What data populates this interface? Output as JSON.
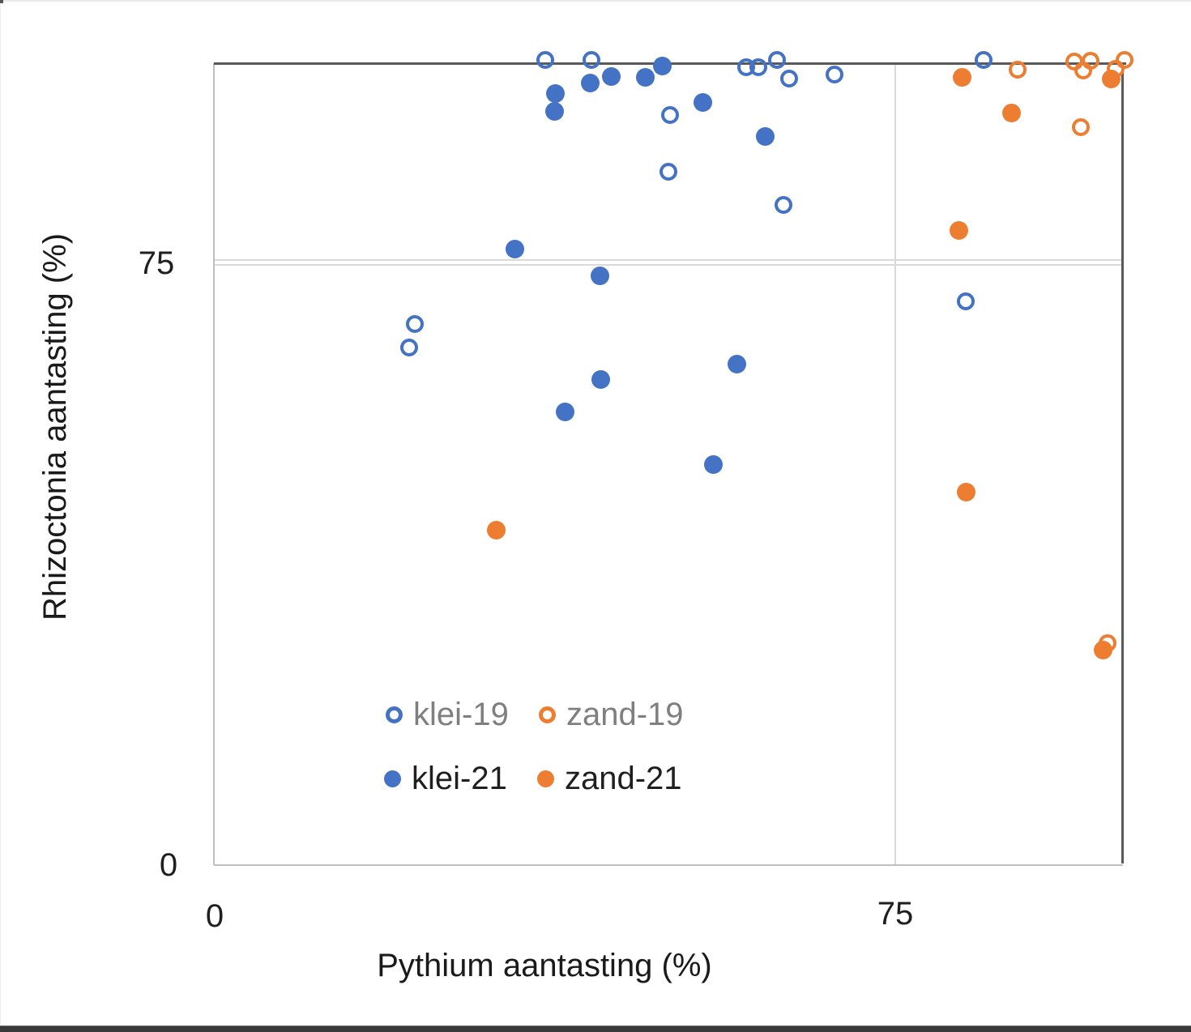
{
  "colors": {
    "blue": "#4472C4",
    "orange": "#ED7D31",
    "border_dark": "#595959",
    "axis_light": "#BFBFBF",
    "grid_light": "#D9D9D9",
    "legend_muted_text": "#7F7F7F",
    "text_dark": "#1F1F1F",
    "bottom_bar": "#3A3A3A"
  },
  "chart_data": {
    "type": "scatter",
    "title": "",
    "xlabel": "Pythium aantasting (%)",
    "ylabel": "Rhizoctonia aantasting (%)",
    "xlim": [
      0,
      100
    ],
    "ylim": [
      0,
      100
    ],
    "xticks": [
      0,
      75
    ],
    "yticks": [
      0,
      75
    ],
    "xtick_labels": [
      "0",
      "75"
    ],
    "ytick_labels": [
      "0",
      "75"
    ],
    "grid": "major gridlines at 75 on both axes; dark border on top and right edges",
    "legend": {
      "position": "inside bottom-left of plot, two rows",
      "items": [
        {
          "label": "klei-19",
          "color": "#4472C4",
          "marker": "open"
        },
        {
          "label": "zand-19",
          "color": "#ED7D31",
          "marker": "open"
        },
        {
          "label": "klei-21",
          "color": "#4472C4",
          "marker": "filled"
        },
        {
          "label": "zand-21",
          "color": "#ED7D31",
          "marker": "filled"
        }
      ]
    },
    "series": [
      {
        "name": "klei-19",
        "color": "#4472C4",
        "marker": "open",
        "points": [
          [
            36.5,
            99.9
          ],
          [
            41.6,
            100
          ],
          [
            58.6,
            99.0
          ],
          [
            59.9,
            99.0
          ],
          [
            62.0,
            99.9
          ],
          [
            63.3,
            97.6
          ],
          [
            68.3,
            98.1
          ],
          [
            84.7,
            99.9
          ],
          [
            50.2,
            93.1
          ],
          [
            50.0,
            86.1
          ],
          [
            62.7,
            82.0
          ],
          [
            82.8,
            70.0
          ],
          [
            22.1,
            67.2
          ],
          [
            21.5,
            64.3
          ]
        ]
      },
      {
        "name": "zand-19",
        "color": "#ED7D31",
        "marker": "open",
        "points": [
          [
            88.5,
            98.7
          ],
          [
            94.7,
            99.7
          ],
          [
            95.7,
            98.6
          ],
          [
            96.5,
            99.8
          ],
          [
            99.3,
            98.8
          ],
          [
            100.2,
            99.9
          ],
          [
            95.4,
            91.6
          ],
          [
            98.4,
            27.6
          ]
        ]
      },
      {
        "name": "klei-21",
        "color": "#4472C4",
        "marker": "filled",
        "points": [
          [
            41.4,
            97.1
          ],
          [
            43.7,
            97.9
          ],
          [
            47.5,
            97.8
          ],
          [
            49.4,
            99.2
          ],
          [
            37.6,
            95.8
          ],
          [
            37.5,
            93.6
          ],
          [
            53.8,
            94.7
          ],
          [
            60.7,
            90.4
          ],
          [
            33.1,
            76.5
          ],
          [
            42.5,
            73.2
          ],
          [
            42.6,
            60.3
          ],
          [
            57.6,
            62.2
          ],
          [
            38.7,
            56.3
          ],
          [
            55.0,
            49.7
          ]
        ]
      },
      {
        "name": "zand-21",
        "color": "#ED7D31",
        "marker": "filled",
        "points": [
          [
            82.4,
            97.8
          ],
          [
            98.8,
            97.6
          ],
          [
            87.8,
            93.4
          ],
          [
            82.0,
            78.8
          ],
          [
            82.8,
            46.3
          ],
          [
            31.1,
            41.6
          ],
          [
            97.9,
            26.7
          ]
        ]
      }
    ]
  }
}
